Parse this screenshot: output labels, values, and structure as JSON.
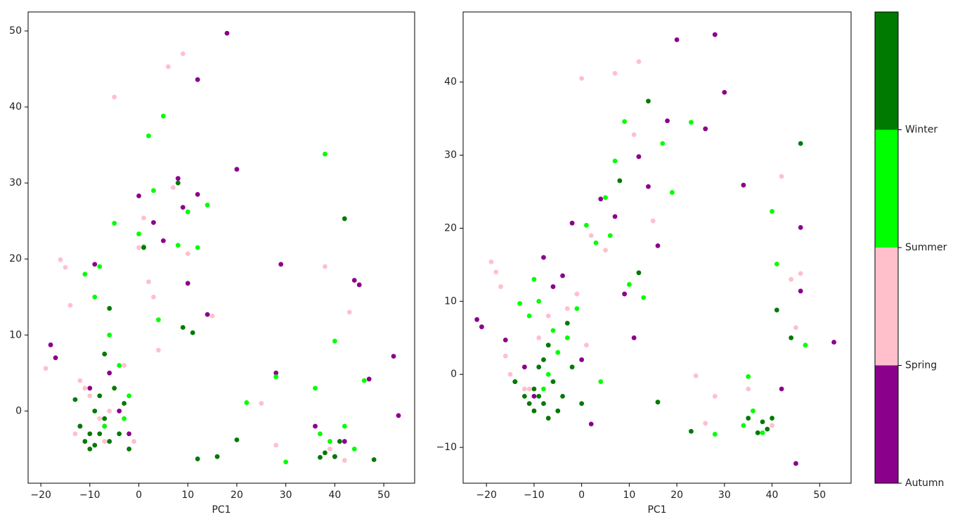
{
  "chart_data": [
    {
      "type": "scatter",
      "x_label": "PC1",
      "xlim": [
        -22.6,
        56.3
      ],
      "ylim": [
        -9.5,
        52.5
      ],
      "xticks": [
        {
          "value": -20,
          "label": "−20"
        },
        {
          "value": -10,
          "label": "−10"
        },
        0,
        10,
        20,
        30,
        40,
        50
      ],
      "yticks": [
        0,
        10,
        20,
        30,
        40,
        50
      ],
      "series": [
        {
          "color": "#8b008b",
          "x": [
            -18,
            -17,
            -12,
            -9,
            -6,
            -4,
            -2,
            0,
            3,
            5,
            8,
            9,
            10,
            12,
            14,
            18,
            20,
            12,
            -7,
            -10,
            28,
            29,
            36,
            42,
            44,
            45,
            47,
            52,
            53,
            40
          ],
          "values": [
            8.7,
            7,
            -2,
            19.3,
            5,
            0,
            -3,
            28.3,
            24.8,
            22.4,
            30.6,
            26.8,
            16.8,
            43.6,
            12.7,
            49.7,
            31.8,
            28.5,
            -2,
            3,
            5,
            19.3,
            -2,
            -4,
            17.2,
            16.6,
            4.2,
            7.2,
            -0.6,
            -6
          ]
        },
        {
          "color": "#ffc0cb",
          "x": [
            -19,
            -16,
            -15,
            -14,
            -12,
            -10,
            -8,
            -6,
            -5,
            -3,
            -1,
            1,
            2,
            4,
            6,
            7,
            9,
            10,
            15,
            25,
            28,
            38,
            42,
            -13,
            -11,
            -7,
            3,
            39,
            43,
            0
          ],
          "values": [
            5.6,
            19.9,
            18.9,
            13.9,
            4,
            2,
            -1,
            0,
            41.3,
            6,
            -4,
            25.4,
            17,
            8,
            45.3,
            29.4,
            47,
            20.7,
            12.5,
            1,
            -4.5,
            19,
            -6.5,
            -3,
            3,
            -4,
            15,
            -5,
            13,
            21.5
          ]
        },
        {
          "color": "#00ff00",
          "x": [
            -11,
            -9,
            -8,
            -7,
            -5,
            -4,
            -2,
            0,
            1,
            2,
            3,
            4,
            5,
            8,
            10,
            12,
            14,
            22,
            28,
            30,
            36,
            37,
            38,
            39,
            40,
            42,
            44,
            46,
            -6,
            -3
          ],
          "values": [
            18,
            15,
            19,
            -2,
            24.7,
            6,
            2,
            23.3,
            21.6,
            36.2,
            29,
            12,
            38.8,
            21.8,
            26.2,
            21.5,
            27.1,
            1.1,
            4.5,
            -6.7,
            3,
            -3,
            33.8,
            -4,
            9.2,
            -2,
            -5,
            4,
            10,
            -1
          ]
        },
        {
          "color": "#007a00",
          "x": [
            -13,
            -12,
            -11,
            -10,
            -10,
            -9,
            -9,
            -8,
            -8,
            -7,
            -7,
            -6,
            -6,
            -5,
            -4,
            -3,
            -2,
            1,
            8,
            9,
            11,
            12,
            16,
            20,
            37,
            38,
            40,
            41,
            42,
            48
          ],
          "values": [
            1.5,
            -2,
            -4,
            -3,
            -5,
            0,
            -4.5,
            2,
            -3,
            7.5,
            -1,
            13.5,
            -4,
            3,
            -3,
            1,
            -5,
            21.5,
            30,
            11,
            10.3,
            -6.3,
            -6,
            -3.8,
            -6.1,
            -5.5,
            -6,
            -4,
            25.3,
            -6.4
          ]
        }
      ]
    },
    {
      "type": "scatter",
      "x_label": "PC1",
      "xlim": [
        -24.9,
        56.6
      ],
      "ylim": [
        -14.9,
        49.6
      ],
      "xticks": [
        {
          "value": -20,
          "label": "−20"
        },
        {
          "value": -10,
          "label": "−10"
        },
        0,
        10,
        20,
        30,
        40,
        50
      ],
      "yticks": [
        {
          "value": -10,
          "label": "−10"
        },
        0,
        10,
        20,
        30,
        40
      ],
      "series": [
        {
          "color": "#8b008b",
          "x": [
            -22,
            -21,
            -16,
            -14,
            -12,
            -10,
            -8,
            -6,
            -4,
            -2,
            0,
            2,
            4,
            7,
            9,
            11,
            12,
            14,
            16,
            18,
            20,
            26,
            28,
            30,
            34,
            42,
            45,
            46,
            46,
            53
          ],
          "values": [
            7.5,
            6.5,
            4.7,
            -1,
            1,
            -3,
            16,
            12,
            13.5,
            20.7,
            2,
            -6.8,
            24,
            21.6,
            11,
            5,
            29.8,
            25.7,
            17.6,
            34.7,
            45.8,
            33.6,
            46.5,
            38.6,
            25.9,
            -2,
            -12.2,
            20.1,
            11.4,
            4.4
          ]
        },
        {
          "color": "#ffc0cb",
          "x": [
            -19,
            -18,
            -17,
            -16,
            -15,
            -12,
            -9,
            -7,
            -5,
            -3,
            -1,
            0,
            2,
            5,
            7,
            11,
            12,
            15,
            24,
            26,
            28,
            35,
            36,
            40,
            42,
            44,
            45,
            46,
            -11,
            1
          ],
          "values": [
            15.4,
            14,
            12,
            2.5,
            0,
            -2,
            5,
            8,
            3,
            9,
            11,
            40.5,
            19,
            17,
            41.2,
            32.8,
            42.8,
            21,
            -0.2,
            -6.7,
            -3,
            -2,
            -5,
            -7,
            27.1,
            13,
            6.4,
            13.8,
            -2,
            4
          ]
        },
        {
          "color": "#00ff00",
          "x": [
            -13,
            -11,
            -10,
            -9,
            -8,
            -6,
            -5,
            -3,
            -1,
            1,
            3,
            5,
            6,
            7,
            9,
            10,
            13,
            17,
            19,
            23,
            28,
            34,
            35,
            36,
            38,
            40,
            41,
            47,
            -7,
            4
          ],
          "values": [
            9.7,
            8,
            13,
            10,
            -2,
            6,
            3,
            5,
            9,
            20.4,
            18,
            24.2,
            19,
            29.2,
            34.6,
            12.3,
            10.5,
            31.6,
            24.9,
            34.5,
            -8.2,
            -7,
            -0.3,
            -5,
            -8,
            22.3,
            15.1,
            4,
            0,
            -1
          ]
        },
        {
          "color": "#007a00",
          "x": [
            -14,
            -12,
            -11,
            -10,
            -10,
            -9,
            -9,
            -8,
            -8,
            -7,
            -7,
            -6,
            -5,
            -4,
            -3,
            -2,
            0,
            8,
            12,
            14,
            16,
            23,
            35,
            37,
            38,
            39,
            40,
            41,
            44,
            46
          ],
          "values": [
            -1,
            -3,
            -4,
            -2,
            -5,
            -3,
            1,
            -4,
            2,
            -6,
            4,
            -1,
            -5,
            -3,
            7,
            1,
            -4,
            26.5,
            13.9,
            37.4,
            -3.8,
            -7.8,
            -6,
            -8,
            -6.5,
            -7.5,
            -6,
            8.8,
            5,
            31.6
          ]
        }
      ]
    },
    {
      "type": "colorbar",
      "ylim": [
        0,
        4
      ],
      "colors": [
        "#8b008b",
        "#ffc0cb",
        "#00ff00",
        "#007a00"
      ],
      "yticks": [
        {
          "value": 0,
          "label": "Autumn"
        },
        {
          "value": 1,
          "label": "Spring"
        },
        {
          "value": 2,
          "label": "Summer"
        },
        {
          "value": 3,
          "label": "Winter"
        }
      ]
    }
  ]
}
